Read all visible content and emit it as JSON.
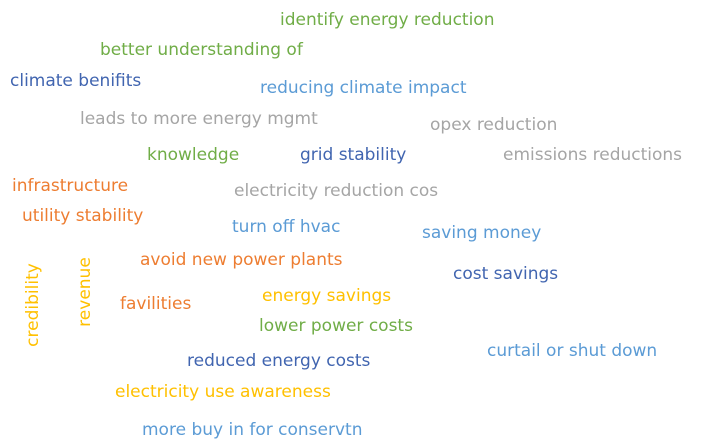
{
  "words": [
    "identify energy reduction",
    "better understanding of",
    "climate benifits",
    "reducing climate impact",
    "leads to more energy mgmt",
    "opex reduction",
    "knowledge",
    "grid stability",
    "emissions reductions",
    "infrastructure",
    "electricity reduction cos",
    "utility stability",
    "turn off hvac",
    "saving money",
    "avoid new power plants",
    "cost savings",
    "favilities",
    "energy savings",
    "lower power costs",
    "curtail or shut down",
    "reduced energy costs",
    "electricity use awareness",
    "more buy in for conservtn",
    "credibility",
    "revenue"
  ]
}
